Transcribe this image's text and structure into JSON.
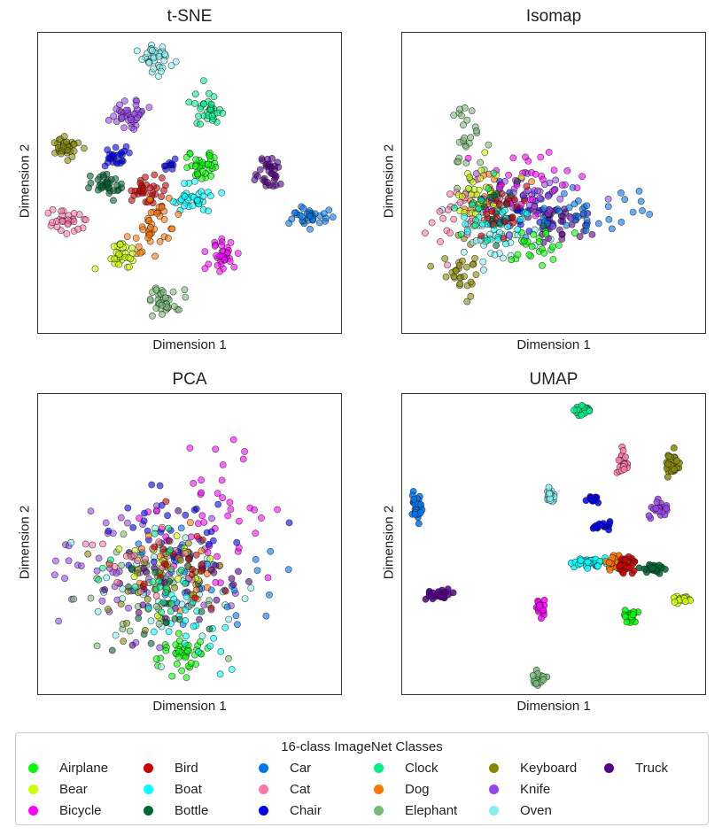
{
  "figure": {
    "legend_title": "16-class ImageNet Classes",
    "legend_columns": 6
  },
  "classes": [
    {
      "name": "Airplane",
      "color": "#00ff00"
    },
    {
      "name": "Bear",
      "color": "#ccff00"
    },
    {
      "name": "Bicycle",
      "color": "#ff00ff"
    },
    {
      "name": "Bird",
      "color": "#cc0000"
    },
    {
      "name": "Boat",
      "color": "#00ffff"
    },
    {
      "name": "Bottle",
      "color": "#006633"
    },
    {
      "name": "Car",
      "color": "#0077ee"
    },
    {
      "name": "Cat",
      "color": "#ff77aa"
    },
    {
      "name": "Chair",
      "color": "#0000ee"
    },
    {
      "name": "Clock",
      "color": "#00ee88"
    },
    {
      "name": "Dog",
      "color": "#ff7700"
    },
    {
      "name": "Elephant",
      "color": "#77bb77"
    },
    {
      "name": "Keyboard",
      "color": "#888800"
    },
    {
      "name": "Knife",
      "color": "#9944ee"
    },
    {
      "name": "Oven",
      "color": "#88eeee"
    },
    {
      "name": "Truck",
      "color": "#550088"
    }
  ],
  "chart_data": [
    {
      "type": "scatter",
      "title": "t-SNE",
      "xlabel": "Dimension 1",
      "ylabel": "Dimension 2",
      "xlim": [
        0,
        100
      ],
      "ylim": [
        0,
        100
      ],
      "grid": false,
      "series": [
        {
          "name": "Oven",
          "cx": 39,
          "cy": 91,
          "sx": 2.5,
          "sy": 2.5,
          "n": 40
        },
        {
          "name": "Clock",
          "cx": 56,
          "cy": 75,
          "sx": 2.5,
          "sy": 3.0,
          "n": 35
        },
        {
          "name": "Knife",
          "cx": 30,
          "cy": 73,
          "sx": 3.0,
          "sy": 2.0,
          "n": 40
        },
        {
          "name": "Keyboard",
          "cx": 9,
          "cy": 62,
          "sx": 3.0,
          "sy": 1.8,
          "n": 35
        },
        {
          "name": "Chair",
          "cx": 26,
          "cy": 59,
          "sx": 3.0,
          "sy": 2.0,
          "n": 25
        },
        {
          "name": "Chair",
          "cx": 43,
          "cy": 56,
          "sx": 1.5,
          "sy": 1.5,
          "n": 10
        },
        {
          "name": "Airplane",
          "cx": 55,
          "cy": 56,
          "sx": 2.5,
          "sy": 2.5,
          "n": 35
        },
        {
          "name": "Truck",
          "cx": 76,
          "cy": 54,
          "sx": 2.0,
          "sy": 3.0,
          "n": 35
        },
        {
          "name": "Bottle",
          "cx": 22,
          "cy": 49,
          "sx": 3.0,
          "sy": 2.0,
          "n": 35
        },
        {
          "name": "Bird",
          "cx": 36,
          "cy": 47,
          "sx": 3.0,
          "sy": 2.5,
          "n": 35
        },
        {
          "name": "Boat",
          "cx": 51,
          "cy": 45,
          "sx": 3.0,
          "sy": 2.5,
          "n": 35
        },
        {
          "name": "Car",
          "cx": 90,
          "cy": 39,
          "sx": 3.0,
          "sy": 1.5,
          "n": 35
        },
        {
          "name": "Cat",
          "cx": 10,
          "cy": 37,
          "sx": 3.0,
          "sy": 2.0,
          "n": 30
        },
        {
          "name": "Dog",
          "cx": 38,
          "cy": 36,
          "sx": 3.5,
          "sy": 4.5,
          "n": 40
        },
        {
          "name": "Bicycle",
          "cx": 61,
          "cy": 26,
          "sx": 2.5,
          "sy": 3.0,
          "n": 35
        },
        {
          "name": "Bear",
          "cx": 27,
          "cy": 26,
          "sx": 2.5,
          "sy": 2.5,
          "n": 30
        },
        {
          "name": "Elephant",
          "cx": 41,
          "cy": 10,
          "sx": 3.0,
          "sy": 2.5,
          "n": 35
        }
      ]
    },
    {
      "type": "scatter",
      "title": "Isomap",
      "xlabel": "Dimension 1",
      "ylabel": "Dimension 2",
      "xlim": [
        0,
        100
      ],
      "ylim": [
        0,
        100
      ],
      "grid": false,
      "series": [
        {
          "name": "Elephant",
          "cx": 22,
          "cy": 62,
          "sx": 3.5,
          "sy": 7,
          "n": 30
        },
        {
          "name": "Keyboard",
          "cx": 20,
          "cy": 22,
          "sx": 4,
          "sy": 5,
          "n": 30
        },
        {
          "name": "Dog",
          "cx": 30,
          "cy": 45,
          "sx": 4,
          "sy": 4,
          "n": 35
        },
        {
          "name": "Oven",
          "cx": 33,
          "cy": 34,
          "sx": 7,
          "sy": 5,
          "n": 50
        },
        {
          "name": "Chair",
          "cx": 38,
          "cy": 40,
          "sx": 7,
          "sy": 5,
          "n": 30
        },
        {
          "name": "Truck",
          "cx": 53,
          "cy": 37,
          "sx": 6,
          "sy": 4,
          "n": 40
        },
        {
          "name": "Car",
          "cx": 60,
          "cy": 40,
          "sx": 12,
          "sy": 5,
          "n": 40
        },
        {
          "name": "Knife",
          "cx": 43,
          "cy": 44,
          "sx": 9,
          "sy": 6,
          "n": 40
        },
        {
          "name": "Bicycle",
          "cx": 40,
          "cy": 50,
          "sx": 8,
          "sy": 7,
          "n": 35
        },
        {
          "name": "Airplane",
          "cx": 45,
          "cy": 29,
          "sx": 5,
          "sy": 3,
          "n": 25
        },
        {
          "name": "Cat",
          "cx": 18,
          "cy": 38,
          "sx": 5,
          "sy": 6,
          "n": 25
        },
        {
          "name": "Bear",
          "cx": 25,
          "cy": 48,
          "sx": 5,
          "sy": 6,
          "n": 25
        },
        {
          "name": "Boat",
          "cx": 30,
          "cy": 38,
          "sx": 5,
          "sy": 4,
          "n": 25
        },
        {
          "name": "Bottle",
          "cx": 32,
          "cy": 42,
          "sx": 4,
          "sy": 5,
          "n": 15
        },
        {
          "name": "Clock",
          "cx": 26,
          "cy": 40,
          "sx": 4,
          "sy": 5,
          "n": 15
        },
        {
          "name": "Bird",
          "cx": 35,
          "cy": 41,
          "sx": 5,
          "sy": 4,
          "n": 20
        }
      ]
    },
    {
      "type": "scatter",
      "title": "PCA",
      "xlabel": "Dimension 1",
      "ylabel": "Dimension 2",
      "xlim": [
        0,
        100
      ],
      "ylim": [
        0,
        100
      ],
      "grid": false,
      "series": [
        {
          "name": "Airplane",
          "cx": 48,
          "cy": 13,
          "sx": 4,
          "sy": 3.5,
          "n": 40
        },
        {
          "name": "Knife",
          "cx": 30,
          "cy": 40,
          "sx": 13,
          "sy": 12,
          "n": 55
        },
        {
          "name": "Bicycle",
          "cx": 55,
          "cy": 57,
          "sx": 12,
          "sy": 12,
          "n": 45
        },
        {
          "name": "Oven",
          "cx": 45,
          "cy": 37,
          "sx": 10,
          "sy": 10,
          "n": 40
        },
        {
          "name": "Car",
          "cx": 58,
          "cy": 40,
          "sx": 13,
          "sy": 9,
          "n": 40
        },
        {
          "name": "Chair",
          "cx": 45,
          "cy": 55,
          "sx": 13,
          "sy": 9,
          "n": 30
        },
        {
          "name": "Dog",
          "cx": 44,
          "cy": 44,
          "sx": 8,
          "sy": 8,
          "n": 30
        },
        {
          "name": "Elephant",
          "cx": 35,
          "cy": 35,
          "sx": 11,
          "sy": 9,
          "n": 35
        },
        {
          "name": "Keyboard",
          "cx": 38,
          "cy": 35,
          "sx": 8,
          "sy": 8,
          "n": 25
        },
        {
          "name": "Truck",
          "cx": 45,
          "cy": 35,
          "sx": 14,
          "sy": 8,
          "n": 30
        },
        {
          "name": "Boat",
          "cx": 50,
          "cy": 25,
          "sx": 10,
          "sy": 8,
          "n": 25
        },
        {
          "name": "Bottle",
          "cx": 42,
          "cy": 30,
          "sx": 10,
          "sy": 8,
          "n": 20
        },
        {
          "name": "Bear",
          "cx": 40,
          "cy": 42,
          "sx": 9,
          "sy": 8,
          "n": 20
        },
        {
          "name": "Cat",
          "cx": 38,
          "cy": 46,
          "sx": 10,
          "sy": 9,
          "n": 20
        },
        {
          "name": "Bird",
          "cx": 46,
          "cy": 46,
          "sx": 9,
          "sy": 8,
          "n": 20
        },
        {
          "name": "Clock",
          "cx": 40,
          "cy": 38,
          "sx": 10,
          "sy": 8,
          "n": 20
        }
      ]
    },
    {
      "type": "scatter",
      "title": "UMAP",
      "xlabel": "Dimension 1",
      "ylabel": "Dimension 2",
      "xlim": [
        0,
        100
      ],
      "ylim": [
        0,
        100
      ],
      "grid": false,
      "series": [
        {
          "name": "Clock",
          "cx": 60,
          "cy": 95,
          "sx": 1.3,
          "sy": 0.8,
          "n": 30
        },
        {
          "name": "Cat",
          "cx": 73,
          "cy": 77,
          "sx": 1,
          "sy": 2,
          "n": 25
        },
        {
          "name": "Keyboard",
          "cx": 89,
          "cy": 77,
          "sx": 1,
          "sy": 2.2,
          "n": 30
        },
        {
          "name": "Oven",
          "cx": 49,
          "cy": 66,
          "sx": 0.8,
          "sy": 1.3,
          "n": 25
        },
        {
          "name": "Chair",
          "cx": 63,
          "cy": 65,
          "sx": 0.8,
          "sy": 0.8,
          "n": 12
        },
        {
          "name": "Chair",
          "cx": 66,
          "cy": 56,
          "sx": 2,
          "sy": 0.8,
          "n": 15
        },
        {
          "name": "Car",
          "cx": 5,
          "cy": 62,
          "sx": 0.8,
          "sy": 2.5,
          "n": 30
        },
        {
          "name": "Knife",
          "cx": 85,
          "cy": 62,
          "sx": 1.5,
          "sy": 1.5,
          "n": 25
        },
        {
          "name": "Boat",
          "cx": 62,
          "cy": 44,
          "sx": 3,
          "sy": 0.8,
          "n": 30
        },
        {
          "name": "Dog",
          "cx": 70,
          "cy": 44,
          "sx": 1.2,
          "sy": 1.5,
          "n": 25
        },
        {
          "name": "Bird",
          "cx": 74,
          "cy": 43,
          "sx": 1.5,
          "sy": 1.5,
          "n": 25
        },
        {
          "name": "Bottle",
          "cx": 82,
          "cy": 42,
          "sx": 2,
          "sy": 0.8,
          "n": 25
        },
        {
          "name": "Truck",
          "cx": 13,
          "cy": 33,
          "sx": 2,
          "sy": 0.9,
          "n": 25
        },
        {
          "name": "Bear",
          "cx": 93,
          "cy": 32,
          "sx": 2,
          "sy": 0.8,
          "n": 15
        },
        {
          "name": "Bicycle",
          "cx": 46,
          "cy": 28,
          "sx": 0.8,
          "sy": 1.8,
          "n": 20
        },
        {
          "name": "Airplane",
          "cx": 75,
          "cy": 26,
          "sx": 1.2,
          "sy": 1.2,
          "n": 25
        },
        {
          "name": "Elephant",
          "cx": 45,
          "cy": 5,
          "sx": 1,
          "sy": 1.2,
          "n": 25
        }
      ]
    }
  ]
}
